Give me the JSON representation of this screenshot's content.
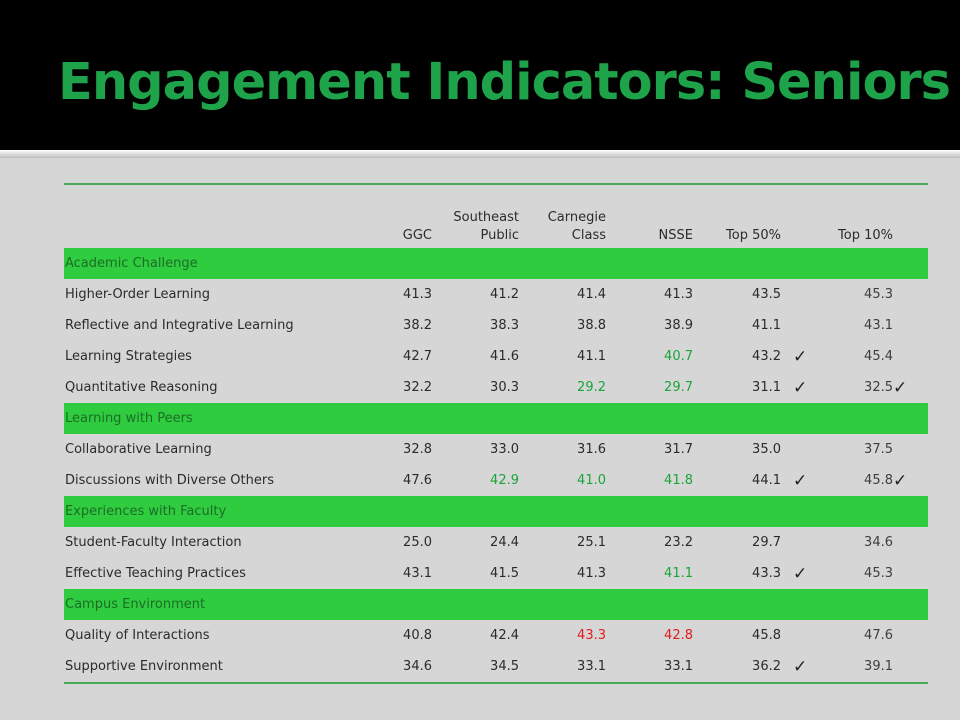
{
  "slide": {
    "title": "Engagement Indicators: Seniors"
  },
  "table": {
    "headers": {
      "ggc": "GGC",
      "southeast_l1": "Southeast",
      "southeast_l2": "Public",
      "carnegie_l1": "Carnegie",
      "carnegie_l2": "Class",
      "nsse": "NSSE",
      "top50": "Top 50%",
      "top10": "Top 10%"
    },
    "checkmark": "✓",
    "sections": [
      {
        "name": "Academic Challenge",
        "rows": [
          {
            "label": "Higher-Order Learning",
            "ggc": "41.3",
            "southeast": "41.2",
            "carnegie": "41.4",
            "nsse": "41.3",
            "top50": "43.5",
            "top10": "45.3"
          },
          {
            "label": "Reflective and Integrative Learning",
            "ggc": "38.2",
            "southeast": "38.3",
            "carnegie": "38.8",
            "nsse": "38.9",
            "top50": "41.1",
            "top10": "43.1"
          },
          {
            "label": "Learning Strategies",
            "ggc": "42.7",
            "southeast": "41.6",
            "carnegie": "41.1",
            "nsse": "40.7",
            "top50": "43.2",
            "top10": "45.4"
          },
          {
            "label": "Quantitative Reasoning",
            "ggc": "32.2",
            "southeast": "30.3",
            "carnegie": "29.2",
            "nsse": "29.7",
            "top50": "31.1",
            "top10": "32.5"
          }
        ]
      },
      {
        "name": "Learning with Peers",
        "rows": [
          {
            "label": "Collaborative Learning",
            "ggc": "32.8",
            "southeast": "33.0",
            "carnegie": "31.6",
            "nsse": "31.7",
            "top50": "35.0",
            "top10": "37.5"
          },
          {
            "label": "Discussions with Diverse Others",
            "ggc": "47.6",
            "southeast": "42.9",
            "carnegie": "41.0",
            "nsse": "41.8",
            "top50": "44.1",
            "top10": "45.8"
          }
        ]
      },
      {
        "name": "Experiences with Faculty",
        "rows": [
          {
            "label": "Student-Faculty Interaction",
            "ggc": "25.0",
            "southeast": "24.4",
            "carnegie": "25.1",
            "nsse": "23.2",
            "top50": "29.7",
            "top10": "34.6"
          },
          {
            "label": "Effective Teaching Practices",
            "ggc": "43.1",
            "southeast": "41.5",
            "carnegie": "41.3",
            "nsse": "41.1",
            "top50": "43.3",
            "top10": "45.3"
          }
        ]
      },
      {
        "name": "Campus Environment",
        "rows": [
          {
            "label": "Quality of Interactions",
            "ggc": "40.8",
            "southeast": "42.4",
            "carnegie": "43.3",
            "nsse": "42.8",
            "top50": "45.8",
            "top10": "47.6"
          },
          {
            "label": "Supportive Environment",
            "ggc": "34.6",
            "southeast": "34.5",
            "carnegie": "33.1",
            "nsse": "33.1",
            "top50": "36.2",
            "top10": "39.1"
          }
        ]
      }
    ]
  },
  "colors": {
    "title": "#1fa34a",
    "section_fill": "#2ecc3e",
    "significant_green": "#19a53a",
    "significant_red": "#e31b1b",
    "rule": "#49a95a",
    "background": "#d6d6d6"
  }
}
